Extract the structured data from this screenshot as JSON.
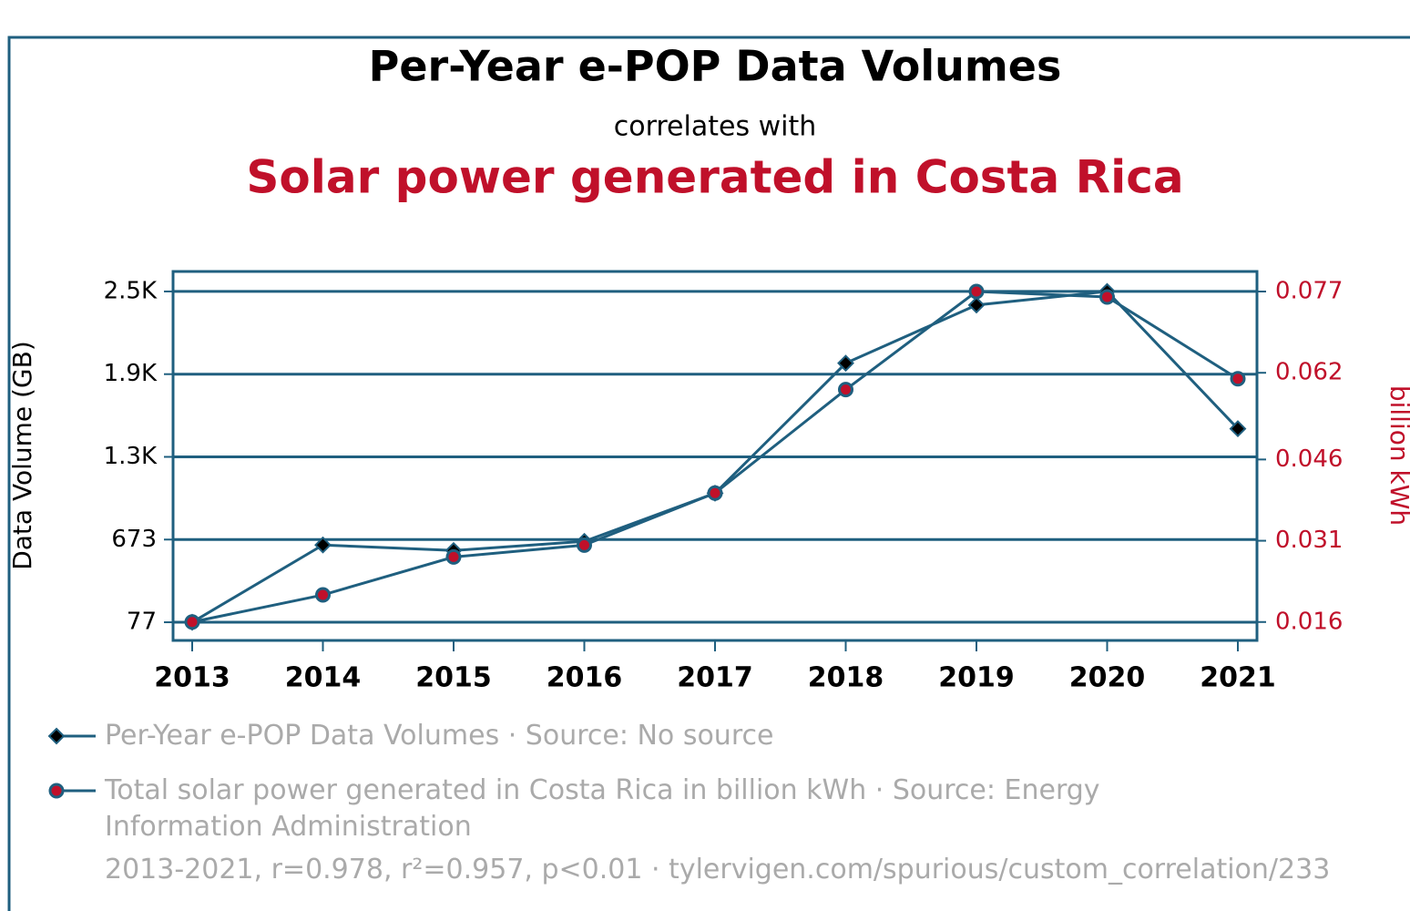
{
  "chart_data": {
    "type": "line",
    "title": "Per-Year e-POP Data Volumes",
    "subtitle": "correlates with",
    "title2": "Solar power generated in Costa Rica",
    "ylabel": "Data Volume (GB)",
    "y2label": "billion kWh",
    "categories": [
      "2013",
      "2014",
      "2015",
      "2016",
      "2017",
      "2018",
      "2019",
      "2020",
      "2021"
    ],
    "series": [
      {
        "name": "Per-Year e-POP Data Volumes · Source: No source",
        "color": "#1f5f7f",
        "marker": "diamond",
        "marker_color": "#000000",
        "values": [
          77,
          634,
          594,
          660,
          1007,
          1944,
          2363,
          2461,
          1472
        ]
      },
      {
        "name": "Total solar power generated in Costa Rica in billion kWh · Source: Energy Information Administration",
        "color": "#1f5f7f",
        "marker": "circle",
        "marker_color": "#c0102a",
        "axis": "y2",
        "values": [
          0.016,
          0.021,
          0.028,
          0.0302,
          0.0398,
          0.0589,
          0.077,
          0.076,
          0.0609
        ]
      }
    ],
    "ylim": [
      -54,
      2605
    ],
    "yticks": [
      77,
      673,
      {
        "value": 1269,
        "label": "1.3K"
      },
      {
        "value": 1865,
        "label": "1.9K"
      },
      {
        "value": 2461,
        "label": "2.5K"
      }
    ],
    "y2lim": [
      0.0126,
      0.0807
    ],
    "y2ticks": [
      0.016,
      0.031,
      0.046,
      0.062,
      0.077
    ],
    "grid": true,
    "footer": "2013-2021, r=0.978, r²=0.957, p<0.01 · tylervigen.com/spurious/custom_correlation/233"
  }
}
